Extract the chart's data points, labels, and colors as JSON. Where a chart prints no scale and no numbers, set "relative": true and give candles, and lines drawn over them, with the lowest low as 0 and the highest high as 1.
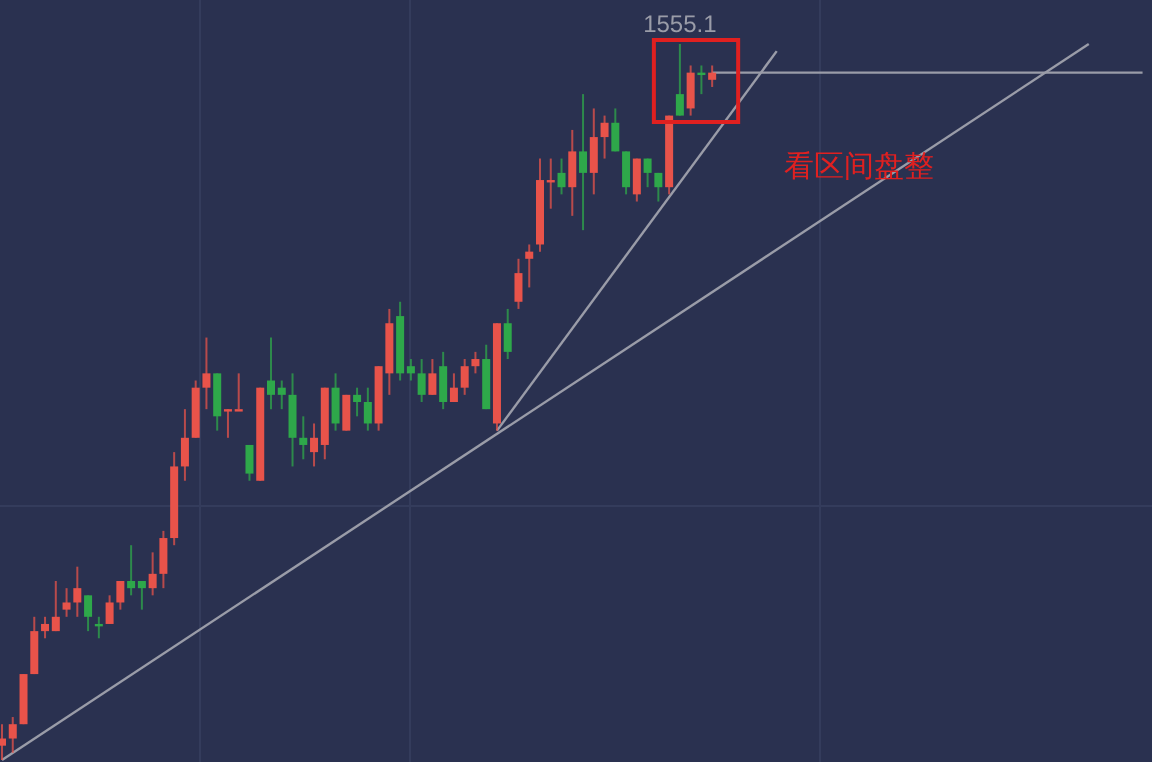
{
  "chart_data": {
    "type": "candlestick",
    "relative": true,
    "categories": [
      null,
      null,
      null,
      null,
      null,
      null,
      null,
      null,
      null,
      null,
      null,
      null,
      null,
      null,
      null,
      null,
      null,
      null,
      null,
      null,
      null,
      null,
      null,
      null,
      null,
      null,
      null,
      null,
      null,
      null,
      null,
      null,
      null,
      null,
      null,
      null,
      null,
      null,
      null,
      null,
      null,
      null,
      null,
      null,
      null,
      null,
      null,
      null,
      null,
      null,
      null,
      null,
      null,
      null,
      null,
      null,
      null,
      null,
      null,
      null,
      null,
      null,
      null,
      null,
      null,
      null,
      null,
      null,
      null,
      null,
      null,
      null,
      null,
      null,
      null,
      null,
      null,
      null,
      null,
      null,
      null,
      null,
      null,
      null,
      null,
      null,
      null,
      null,
      null,
      null,
      null,
      null,
      null,
      null,
      null,
      null,
      null,
      null,
      null,
      null,
      null,
      null,
      null,
      null,
      null,
      null,
      null
    ],
    "ohlc": [
      [
        0.02,
        0.05,
        0,
        0.03
      ],
      [
        0.03,
        0.06,
        0.01,
        0.05
      ],
      [
        0.05,
        0.12,
        0.05,
        0.12
      ],
      [
        0.12,
        0.2,
        0.12,
        0.18
      ],
      [
        0.18,
        0.2,
        0.17,
        0.19
      ],
      [
        0.18,
        0.25,
        0.18,
        0.2
      ],
      [
        0.21,
        0.24,
        0.2,
        0.22
      ],
      [
        0.22,
        0.27,
        0.2,
        0.24
      ],
      [
        0.23,
        0.23,
        0.18,
        0.2
      ],
      [
        0.19,
        0.2,
        0.17,
        0.19
      ],
      [
        0.19,
        0.23,
        0.19,
        0.22
      ],
      [
        0.22,
        0.25,
        0.21,
        0.25
      ],
      [
        0.25,
        0.3,
        0.23,
        0.24
      ],
      [
        0.25,
        0.25,
        0.21,
        0.24
      ],
      [
        0.24,
        0.29,
        0.23,
        0.26
      ],
      [
        0.26,
        0.32,
        0.24,
        0.31
      ],
      [
        0.31,
        0.43,
        0.3,
        0.41
      ],
      [
        0.41,
        0.49,
        0.39,
        0.45
      ],
      [
        0.45,
        0.53,
        0.45,
        0.52
      ],
      [
        0.52,
        0.59,
        0.49,
        0.54
      ],
      [
        0.54,
        0.54,
        0.46,
        0.48
      ],
      [
        0.49,
        0.49,
        0.45,
        0.49
      ],
      [
        0.49,
        0.54,
        0.49,
        0.49
      ],
      [
        0.44,
        0.44,
        0.39,
        0.4
      ],
      [
        0.39,
        0.52,
        0.39,
        0.52
      ],
      [
        0.53,
        0.59,
        0.49,
        0.51
      ],
      [
        0.52,
        0.53,
        0.49,
        0.51
      ],
      [
        0.51,
        0.54,
        0.41,
        0.45
      ],
      [
        0.45,
        0.48,
        0.42,
        0.44
      ],
      [
        0.43,
        0.47,
        0.41,
        0.45
      ],
      [
        0.44,
        0.52,
        0.42,
        0.52
      ],
      [
        0.52,
        0.54,
        0.46,
        0.47
      ],
      [
        0.46,
        0.51,
        0.46,
        0.51
      ],
      [
        0.51,
        0.52,
        0.48,
        0.5
      ],
      [
        0.5,
        0.52,
        0.46,
        0.47
      ],
      [
        0.47,
        0.55,
        0.46,
        0.55
      ],
      [
        0.54,
        0.63,
        0.51,
        0.61
      ],
      [
        0.62,
        0.64,
        0.53,
        0.54
      ],
      [
        0.55,
        0.56,
        0.53,
        0.54
      ],
      [
        0.54,
        0.56,
        0.5,
        0.51
      ],
      [
        0.51,
        0.56,
        0.51,
        0.54
      ],
      [
        0.55,
        0.57,
        0.49,
        0.5
      ],
      [
        0.5,
        0.54,
        0.5,
        0.52
      ],
      [
        0.52,
        0.56,
        0.51,
        0.55
      ],
      [
        0.55,
        0.57,
        0.54,
        0.56
      ],
      [
        0.56,
        0.58,
        0.49,
        0.49
      ],
      [
        0.47,
        0.61,
        0.46,
        0.61
      ],
      [
        0.61,
        0.63,
        0.56,
        0.57
      ],
      [
        0.64,
        0.7,
        0.63,
        0.68
      ],
      [
        0.7,
        0.72,
        0.66,
        0.71
      ],
      [
        0.72,
        0.84,
        0.71,
        0.81
      ],
      [
        0.81,
        0.84,
        0.77,
        0.81
      ],
      [
        0.82,
        0.84,
        0.79,
        0.8
      ],
      [
        0.8,
        0.88,
        0.76,
        0.85
      ],
      [
        0.85,
        0.93,
        0.74,
        0.82
      ],
      [
        0.82,
        0.91,
        0.79,
        0.87
      ],
      [
        0.87,
        0.9,
        0.84,
        0.89
      ],
      [
        0.89,
        0.91,
        0.85,
        0.85
      ],
      [
        0.85,
        0.85,
        0.79,
        0.8
      ],
      [
        0.79,
        0.84,
        0.78,
        0.84
      ],
      [
        0.84,
        0.84,
        0.8,
        0.82
      ],
      [
        0.82,
        0.82,
        0.78,
        0.8
      ],
      [
        0.8,
        0.9,
        0.79,
        0.9
      ],
      [
        0.93,
        1,
        0.9,
        0.9
      ],
      [
        0.91,
        0.97,
        0.9,
        0.96
      ],
      [
        0.96,
        0.97,
        0.93,
        0.96
      ],
      [
        0.95,
        0.97,
        0.94,
        0.96
      ],
      null,
      null,
      null,
      null,
      null,
      null,
      null,
      null,
      null,
      null,
      null,
      null,
      null,
      null,
      null,
      null,
      null,
      null,
      null,
      null,
      null,
      null,
      null,
      null,
      null,
      null,
      null,
      null,
      null,
      null,
      null,
      null,
      null,
      null,
      null,
      null,
      null,
      null,
      null,
      null
    ],
    "colors": [
      "#e8534a",
      "#e8534a",
      "#e8534a",
      "#e8534a",
      "#e8534a",
      "#e8534a",
      "#e8534a",
      "#e8534a",
      "#2ea84a",
      "#2ea84a",
      "#e8534a",
      "#e8534a",
      "#2ea84a",
      "#2ea84a",
      "#e8534a",
      "#e8534a",
      "#e8534a",
      "#e8534a",
      "#e8534a",
      "#e8534a",
      "#2ea84a",
      "#e8534a",
      "#e8534a",
      "#2ea84a",
      "#e8534a",
      "#2ea84a",
      "#2ea84a",
      "#2ea84a",
      "#2ea84a",
      "#e8534a",
      "#e8534a",
      "#2ea84a",
      "#e8534a",
      "#2ea84a",
      "#2ea84a",
      "#e8534a",
      "#e8534a",
      "#2ea84a",
      "#2ea84a",
      "#2ea84a",
      "#e8534a",
      "#2ea84a",
      "#e8534a",
      "#e8534a",
      "#e8534a",
      "#2ea84a",
      "#e8534a",
      "#2ea84a",
      "#e8534a",
      "#e8534a",
      "#e8534a",
      "#e8534a",
      "#2ea84a",
      "#e8534a",
      "#2ea84a",
      "#e8534a",
      "#e8534a",
      "#2ea84a",
      "#2ea84a",
      "#e8534a",
      "#2ea84a",
      "#2ea84a",
      "#e8534a",
      "#2ea84a",
      "#e8534a",
      "#2ea84a",
      "#e8534a",
      null,
      null,
      null,
      null,
      null,
      null,
      null,
      null,
      null,
      null,
      null,
      null,
      null,
      null,
      null,
      null,
      null,
      null,
      null,
      null,
      null,
      null,
      null,
      null,
      null,
      null,
      null,
      null,
      null,
      null,
      null,
      null,
      null,
      null,
      null,
      null,
      null,
      null,
      null,
      null
    ],
    "series": [
      {
        "type": "line",
        "color": "#9a9ca8",
        "values": [
          0,
          null,
          null,
          null,
          null,
          null,
          null,
          null,
          null,
          null,
          null,
          null,
          null,
          null,
          null,
          null,
          null,
          null,
          null,
          null,
          null,
          null,
          null,
          null,
          null,
          null,
          null,
          null,
          null,
          null,
          null,
          null,
          null,
          null,
          null,
          null,
          null,
          null,
          null,
          null,
          null,
          null,
          null,
          null,
          null,
          null,
          null,
          null,
          null,
          null,
          null,
          null,
          null,
          null,
          null,
          null,
          null,
          null,
          null,
          null,
          null,
          null,
          null,
          null,
          null,
          null,
          null,
          null,
          null,
          null,
          null,
          null,
          null,
          null,
          null,
          null,
          null,
          null,
          null,
          null,
          null,
          null,
          null,
          null,
          null,
          null,
          null,
          null,
          null,
          null,
          null,
          null,
          null,
          null,
          null,
          null,
          null,
          null,
          null,
          null,
          null,
          1,
          null,
          null,
          null,
          null,
          null
        ]
      },
      {
        "type": "line",
        "color": "#9a9ca8",
        "values": [
          null,
          null,
          null,
          null,
          null,
          null,
          null,
          null,
          null,
          null,
          null,
          null,
          null,
          null,
          null,
          null,
          null,
          null,
          null,
          null,
          null,
          null,
          null,
          null,
          null,
          null,
          null,
          null,
          null,
          null,
          null,
          null,
          null,
          null,
          null,
          null,
          null,
          null,
          null,
          null,
          null,
          null,
          null,
          null,
          null,
          null,
          0.46,
          null,
          null,
          null,
          null,
          null,
          null,
          null,
          null,
          null,
          null,
          null,
          null,
          null,
          null,
          null,
          null,
          null,
          null,
          null,
          null,
          null,
          null,
          null,
          null,
          null,
          0.99,
          null,
          null,
          null,
          null,
          null,
          null,
          null,
          null,
          null,
          null,
          null,
          null,
          null,
          null,
          null,
          null,
          null,
          null,
          null,
          null,
          null,
          null,
          null,
          null,
          null,
          null,
          null,
          null,
          null,
          null,
          null,
          null,
          null,
          null
        ]
      },
      {
        "type": "line",
        "color": "#9a9ca8",
        "values": [
          null,
          null,
          null,
          null,
          null,
          null,
          null,
          null,
          null,
          null,
          null,
          null,
          null,
          null,
          null,
          null,
          null,
          null,
          null,
          null,
          null,
          null,
          null,
          null,
          null,
          null,
          null,
          null,
          null,
          null,
          null,
          null,
          null,
          null,
          null,
          null,
          null,
          null,
          null,
          null,
          null,
          null,
          null,
          null,
          null,
          null,
          null,
          null,
          null,
          null,
          null,
          null,
          null,
          null,
          null,
          null,
          null,
          null,
          null,
          null,
          null,
          null,
          null,
          null,
          null,
          null,
          0.96,
          null,
          null,
          null,
          null,
          null,
          null,
          null,
          null,
          null,
          null,
          null,
          null,
          null,
          null,
          null,
          null,
          null,
          null,
          null,
          null,
          null,
          null,
          null,
          null,
          null,
          null,
          null,
          null,
          null,
          null,
          null,
          null,
          null,
          null,
          null,
          null,
          null,
          null,
          null,
          0.96
        ]
      }
    ],
    "annotations": [
      "1555.1",
      "看区间盘整"
    ]
  }
}
